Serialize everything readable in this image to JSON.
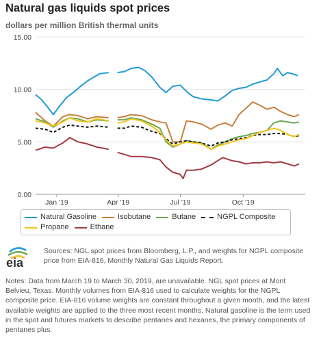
{
  "header": {
    "title": "Natural gas liquids spot prices",
    "subtitle": "dollars per million British thermal units"
  },
  "legend": {
    "row1": [
      {
        "label": "Natural Gasoline",
        "color": "#1f9ad6",
        "dashed": false
      },
      {
        "label": "Isobutane",
        "color": "#c87f3b",
        "dashed": false
      },
      {
        "label": "Butane",
        "color": "#6aa84f",
        "dashed": false
      },
      {
        "label": "NGPL Composite",
        "color": "#111111",
        "dashed": true
      }
    ],
    "row2": [
      {
        "label": "Propane",
        "color": "#f2c318",
        "dashed": false
      },
      {
        "label": "Ethane",
        "color": "#a33a43",
        "dashed": false
      }
    ]
  },
  "footer": {
    "logo_text": "eia",
    "sources": "Sources: NGL spot prices from Bloomberg, L.P., and weights for NGPL composite price from EIA-816, Monthly Natural Gas Liquids Report.",
    "notes": "Notes: Data from March 19 to March 30, 2019, are unavailable. NGL spot prices at Mont Belvieu, Texas. Monthly volumes from EIA-816 used to calculate weights for the NGPL composite price. EIA-816 volume weights are constant throughout a given month, and the latest available weights are applied to the three most recent months. Natural gasoline is the term used in the spot and futures markets to describe pentanes and hexanes, the primary components of pentanes plus."
  },
  "chart_data": {
    "type": "line",
    "title": "Natural gas liquids spot prices",
    "ylabel": "dollars per million British thermal units",
    "ylim": [
      0,
      15
    ],
    "yticks": [
      "0.00",
      "5.00",
      "10.00",
      "15.00"
    ],
    "xticks": [
      {
        "label": "Jan '19",
        "date": "2019-01-01"
      },
      {
        "label": "Apr '19",
        "date": "2019-04-01"
      },
      {
        "label": "Jul '19",
        "date": "2019-07-01"
      },
      {
        "label": "Oct '19",
        "date": "2019-10-01"
      }
    ],
    "xrange": [
      "2018-12-01",
      "2019-12-31"
    ],
    "grid": "horizontal",
    "gap": [
      "2019-03-19",
      "2019-03-30"
    ],
    "series": [
      {
        "name": "Natural Gasoline",
        "color": "#1f9ad6",
        "dashed": false,
        "points": [
          [
            "2018-12-01",
            9.5
          ],
          [
            "2018-12-10",
            9.0
          ],
          [
            "2018-12-20",
            8.2
          ],
          [
            "2018-12-27",
            7.6
          ],
          [
            "2019-01-05",
            8.4
          ],
          [
            "2019-01-15",
            9.2
          ],
          [
            "2019-01-25",
            9.7
          ],
          [
            "2019-02-05",
            10.3
          ],
          [
            "2019-02-15",
            10.8
          ],
          [
            "2019-02-25",
            11.2
          ],
          [
            "2019-03-05",
            11.5
          ],
          [
            "2019-03-18",
            11.6
          ],
          [
            "2019-03-31",
            11.6
          ],
          [
            "2019-04-10",
            11.7
          ],
          [
            "2019-04-20",
            12.0
          ],
          [
            "2019-05-01",
            12.1
          ],
          [
            "2019-05-10",
            11.8
          ],
          [
            "2019-05-20",
            11.2
          ],
          [
            "2019-06-01",
            10.2
          ],
          [
            "2019-06-10",
            9.7
          ],
          [
            "2019-06-20",
            10.3
          ],
          [
            "2019-07-01",
            10.4
          ],
          [
            "2019-07-10",
            9.8
          ],
          [
            "2019-07-20",
            9.3
          ],
          [
            "2019-08-01",
            9.1
          ],
          [
            "2019-08-15",
            9.0
          ],
          [
            "2019-08-25",
            8.9
          ],
          [
            "2019-09-05",
            9.4
          ],
          [
            "2019-09-15",
            9.9
          ],
          [
            "2019-09-25",
            10.1
          ],
          [
            "2019-10-05",
            10.2
          ],
          [
            "2019-10-15",
            10.5
          ],
          [
            "2019-10-25",
            10.7
          ],
          [
            "2019-11-05",
            10.9
          ],
          [
            "2019-11-15",
            11.5
          ],
          [
            "2019-11-20",
            12.0
          ],
          [
            "2019-11-28",
            11.3
          ],
          [
            "2019-12-05",
            11.6
          ],
          [
            "2019-12-12",
            11.5
          ],
          [
            "2019-12-20",
            11.3
          ]
        ]
      },
      {
        "name": "Isobutane",
        "color": "#c87f3b",
        "dashed": false,
        "points": [
          [
            "2018-12-01",
            7.8
          ],
          [
            "2018-12-15",
            7.0
          ],
          [
            "2018-12-27",
            6.5
          ],
          [
            "2019-01-10",
            7.4
          ],
          [
            "2019-01-20",
            7.6
          ],
          [
            "2019-02-01",
            7.5
          ],
          [
            "2019-02-15",
            7.2
          ],
          [
            "2019-03-01",
            7.4
          ],
          [
            "2019-03-18",
            7.3
          ],
          [
            "2019-03-31",
            7.3
          ],
          [
            "2019-04-10",
            7.4
          ],
          [
            "2019-04-20",
            7.6
          ],
          [
            "2019-05-05",
            7.5
          ],
          [
            "2019-05-20",
            7.1
          ],
          [
            "2019-06-01",
            6.9
          ],
          [
            "2019-06-10",
            6.8
          ],
          [
            "2019-06-20",
            5.0
          ],
          [
            "2019-07-01",
            5.0
          ],
          [
            "2019-07-10",
            7.0
          ],
          [
            "2019-07-20",
            6.9
          ],
          [
            "2019-08-01",
            6.7
          ],
          [
            "2019-08-15",
            6.2
          ],
          [
            "2019-08-25",
            6.6
          ],
          [
            "2019-09-05",
            6.8
          ],
          [
            "2019-09-15",
            6.5
          ],
          [
            "2019-09-25",
            7.6
          ],
          [
            "2019-10-05",
            8.2
          ],
          [
            "2019-10-15",
            8.8
          ],
          [
            "2019-10-25",
            8.5
          ],
          [
            "2019-11-05",
            8.1
          ],
          [
            "2019-11-15",
            8.3
          ],
          [
            "2019-11-25",
            7.9
          ],
          [
            "2019-12-05",
            7.6
          ],
          [
            "2019-12-15",
            7.4
          ],
          [
            "2019-12-22",
            7.6
          ]
        ]
      },
      {
        "name": "Butane",
        "color": "#6aa84f",
        "dashed": false,
        "points": [
          [
            "2018-12-01",
            7.2
          ],
          [
            "2018-12-15",
            6.9
          ],
          [
            "2018-12-27",
            6.4
          ],
          [
            "2019-01-10",
            7.0
          ],
          [
            "2019-01-20",
            7.3
          ],
          [
            "2019-02-01",
            7.2
          ],
          [
            "2019-02-15",
            6.9
          ],
          [
            "2019-03-01",
            7.1
          ],
          [
            "2019-03-18",
            7.0
          ],
          [
            "2019-03-31",
            7.1
          ],
          [
            "2019-04-10",
            7.1
          ],
          [
            "2019-04-20",
            7.3
          ],
          [
            "2019-05-05",
            7.1
          ],
          [
            "2019-05-20",
            6.7
          ],
          [
            "2019-06-01",
            6.3
          ],
          [
            "2019-06-10",
            5.0
          ],
          [
            "2019-06-20",
            4.5
          ],
          [
            "2019-07-01",
            4.8
          ],
          [
            "2019-07-10",
            5.1
          ],
          [
            "2019-07-20",
            5.0
          ],
          [
            "2019-08-01",
            4.9
          ],
          [
            "2019-08-15",
            4.3
          ],
          [
            "2019-08-25",
            4.7
          ],
          [
            "2019-09-05",
            5.0
          ],
          [
            "2019-09-15",
            5.3
          ],
          [
            "2019-09-25",
            5.5
          ],
          [
            "2019-10-05",
            5.6
          ],
          [
            "2019-10-15",
            5.8
          ],
          [
            "2019-10-25",
            5.9
          ],
          [
            "2019-11-05",
            6.1
          ],
          [
            "2019-11-15",
            6.8
          ],
          [
            "2019-11-25",
            7.0
          ],
          [
            "2019-12-05",
            6.9
          ],
          [
            "2019-12-15",
            6.8
          ],
          [
            "2019-12-22",
            6.9
          ]
        ]
      },
      {
        "name": "NGPL Composite",
        "color": "#111111",
        "dashed": true,
        "points": [
          [
            "2018-12-01",
            6.3
          ],
          [
            "2018-12-15",
            6.2
          ],
          [
            "2018-12-27",
            5.9
          ],
          [
            "2019-01-10",
            6.4
          ],
          [
            "2019-01-20",
            6.6
          ],
          [
            "2019-02-01",
            6.5
          ],
          [
            "2019-02-15",
            6.4
          ],
          [
            "2019-03-01",
            6.5
          ],
          [
            "2019-03-18",
            6.4
          ],
          [
            "2019-03-31",
            6.3
          ],
          [
            "2019-04-10",
            6.3
          ],
          [
            "2019-04-20",
            6.5
          ],
          [
            "2019-05-05",
            6.4
          ],
          [
            "2019-05-20",
            6.0
          ],
          [
            "2019-06-01",
            5.8
          ],
          [
            "2019-06-10",
            5.3
          ],
          [
            "2019-06-20",
            4.8
          ],
          [
            "2019-07-01",
            5.0
          ],
          [
            "2019-07-10",
            5.1
          ],
          [
            "2019-07-20",
            5.0
          ],
          [
            "2019-08-01",
            4.9
          ],
          [
            "2019-08-15",
            4.6
          ],
          [
            "2019-08-25",
            4.9
          ],
          [
            "2019-09-05",
            5.0
          ],
          [
            "2019-09-15",
            5.2
          ],
          [
            "2019-09-25",
            5.3
          ],
          [
            "2019-10-05",
            5.4
          ],
          [
            "2019-10-15",
            5.6
          ],
          [
            "2019-10-25",
            5.7
          ],
          [
            "2019-11-05",
            5.7
          ],
          [
            "2019-11-15",
            5.8
          ],
          [
            "2019-11-25",
            5.8
          ],
          [
            "2019-12-05",
            5.7
          ],
          [
            "2019-12-15",
            5.5
          ],
          [
            "2019-12-22",
            5.6
          ]
        ]
      },
      {
        "name": "Propane",
        "color": "#f2c318",
        "dashed": false,
        "points": [
          [
            "2018-12-01",
            7.0
          ],
          [
            "2018-12-15",
            6.8
          ],
          [
            "2018-12-27",
            6.5
          ],
          [
            "2019-01-10",
            6.9
          ],
          [
            "2019-01-20",
            7.3
          ],
          [
            "2019-02-01",
            7.0
          ],
          [
            "2019-02-15",
            6.9
          ],
          [
            "2019-03-01",
            7.2
          ],
          [
            "2019-03-18",
            7.0
          ],
          [
            "2019-03-31",
            6.8
          ],
          [
            "2019-04-10",
            6.9
          ],
          [
            "2019-04-20",
            7.2
          ],
          [
            "2019-05-05",
            7.0
          ],
          [
            "2019-05-20",
            6.5
          ],
          [
            "2019-06-01",
            5.9
          ],
          [
            "2019-06-10",
            5.2
          ],
          [
            "2019-06-20",
            4.6
          ],
          [
            "2019-07-01",
            4.8
          ],
          [
            "2019-07-10",
            5.0
          ],
          [
            "2019-07-20",
            4.9
          ],
          [
            "2019-08-01",
            4.8
          ],
          [
            "2019-08-15",
            4.3
          ],
          [
            "2019-08-25",
            4.6
          ],
          [
            "2019-09-05",
            4.8
          ],
          [
            "2019-09-15",
            5.0
          ],
          [
            "2019-09-25",
            5.2
          ],
          [
            "2019-10-05",
            5.3
          ],
          [
            "2019-10-15",
            5.6
          ],
          [
            "2019-10-25",
            5.9
          ],
          [
            "2019-11-05",
            6.1
          ],
          [
            "2019-11-15",
            6.3
          ],
          [
            "2019-11-25",
            6.1
          ],
          [
            "2019-12-05",
            5.7
          ],
          [
            "2019-12-15",
            5.5
          ],
          [
            "2019-12-22",
            5.7
          ]
        ]
      },
      {
        "name": "Ethane",
        "color": "#a33a43",
        "dashed": false,
        "points": [
          [
            "2018-12-01",
            4.2
          ],
          [
            "2018-12-15",
            4.5
          ],
          [
            "2018-12-27",
            4.4
          ],
          [
            "2019-01-10",
            4.9
          ],
          [
            "2019-01-20",
            5.4
          ],
          [
            "2019-02-01",
            5.0
          ],
          [
            "2019-02-15",
            4.8
          ],
          [
            "2019-03-01",
            4.5
          ],
          [
            "2019-03-18",
            4.3
          ],
          [
            "2019-03-31",
            4.0
          ],
          [
            "2019-04-10",
            3.8
          ],
          [
            "2019-04-20",
            3.6
          ],
          [
            "2019-05-05",
            3.6
          ],
          [
            "2019-05-20",
            3.5
          ],
          [
            "2019-06-01",
            3.3
          ],
          [
            "2019-06-10",
            2.6
          ],
          [
            "2019-06-20",
            2.1
          ],
          [
            "2019-07-01",
            1.9
          ],
          [
            "2019-07-05",
            1.5
          ],
          [
            "2019-07-10",
            2.3
          ],
          [
            "2019-07-20",
            2.3
          ],
          [
            "2019-08-01",
            2.4
          ],
          [
            "2019-08-15",
            2.8
          ],
          [
            "2019-09-01",
            3.5
          ],
          [
            "2019-09-15",
            3.2
          ],
          [
            "2019-09-25",
            3.1
          ],
          [
            "2019-10-05",
            2.9
          ],
          [
            "2019-10-15",
            3.0
          ],
          [
            "2019-10-25",
            3.0
          ],
          [
            "2019-11-05",
            3.1
          ],
          [
            "2019-11-15",
            3.0
          ],
          [
            "2019-11-25",
            3.1
          ],
          [
            "2019-12-05",
            2.9
          ],
          [
            "2019-12-15",
            2.7
          ],
          [
            "2019-12-22",
            2.9
          ]
        ]
      }
    ]
  }
}
